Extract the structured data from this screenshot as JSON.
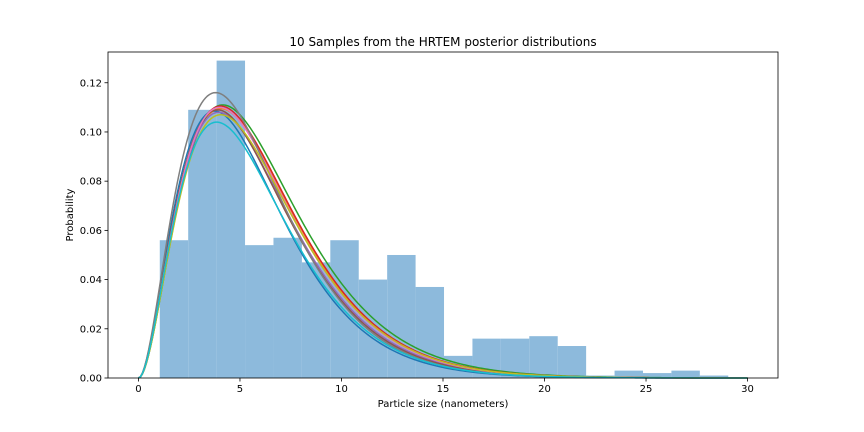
{
  "chart_data": {
    "type": "bar",
    "title": "10 Samples from the HRTEM posterior distributions",
    "xlabel": "Particle size (nanometers)",
    "ylabel": "Probability",
    "xlim": [
      -1.5,
      31.5
    ],
    "ylim": [
      0,
      0.1325
    ],
    "grid": false,
    "x_ticks": [
      0,
      5,
      10,
      15,
      20,
      25,
      30
    ],
    "y_ticks": [
      0.0,
      0.02,
      0.04,
      0.06,
      0.08,
      0.1,
      0.12
    ],
    "x_tick_labels": [
      "0",
      "5",
      "10",
      "15",
      "20",
      "25",
      "30"
    ],
    "y_tick_labels": [
      "0.00",
      "0.02",
      "0.04",
      "0.06",
      "0.08",
      "0.10",
      "0.12"
    ],
    "histogram": {
      "color": "#8dbadc",
      "bins": [
        {
          "start": 1.05,
          "end": 2.45,
          "value": 0.056
        },
        {
          "start": 2.45,
          "end": 3.85,
          "value": 0.109
        },
        {
          "start": 3.85,
          "end": 5.25,
          "value": 0.129
        },
        {
          "start": 5.25,
          "end": 6.65,
          "value": 0.054
        },
        {
          "start": 6.65,
          "end": 8.05,
          "value": 0.057
        },
        {
          "start": 8.05,
          "end": 9.45,
          "value": 0.047
        },
        {
          "start": 9.45,
          "end": 10.85,
          "value": 0.056
        },
        {
          "start": 10.85,
          "end": 12.25,
          "value": 0.04
        },
        {
          "start": 12.25,
          "end": 13.65,
          "value": 0.05
        },
        {
          "start": 13.65,
          "end": 15.05,
          "value": 0.037
        },
        {
          "start": 15.05,
          "end": 16.45,
          "value": 0.009
        },
        {
          "start": 16.45,
          "end": 17.85,
          "value": 0.016
        },
        {
          "start": 17.85,
          "end": 19.25,
          "value": 0.016
        },
        {
          "start": 19.25,
          "end": 20.65,
          "value": 0.017
        },
        {
          "start": 20.65,
          "end": 22.05,
          "value": 0.013
        },
        {
          "start": 22.05,
          "end": 23.45,
          "value": 0.001
        },
        {
          "start": 23.45,
          "end": 24.85,
          "value": 0.003
        },
        {
          "start": 24.85,
          "end": 26.25,
          "value": 0.002
        },
        {
          "start": 26.25,
          "end": 27.65,
          "value": 0.003
        },
        {
          "start": 27.65,
          "end": 29.05,
          "value": 0.001
        }
      ]
    },
    "series": [
      {
        "color": "#1f77b4",
        "mode": 3.75,
        "peak": 0.1085
      },
      {
        "color": "#ff7f0e",
        "mode": 4.05,
        "peak": 0.1095
      },
      {
        "color": "#2ca02c",
        "mode": 4.15,
        "peak": 0.111
      },
      {
        "color": "#d62728",
        "mode": 4.05,
        "peak": 0.1105
      },
      {
        "color": "#9467bd",
        "mode": 3.95,
        "peak": 0.108
      },
      {
        "color": "#8c564b",
        "mode": 3.9,
        "peak": 0.109
      },
      {
        "color": "#e377c2",
        "mode": 4.0,
        "peak": 0.11
      },
      {
        "color": "#7f7f7f",
        "mode": 3.8,
        "peak": 0.116
      },
      {
        "color": "#bcbd22",
        "mode": 4.05,
        "peak": 0.107
      },
      {
        "color": "#17becf",
        "mode": 3.85,
        "peak": 0.104
      }
    ]
  }
}
